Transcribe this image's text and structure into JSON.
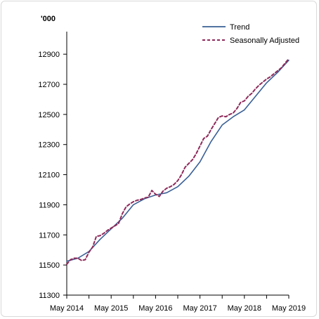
{
  "chart_data": {
    "type": "line",
    "title": "",
    "unit_label": "'000",
    "xlabel": "",
    "ylabel": "",
    "x_tick_labels": [
      "May 2014",
      "May 2015",
      "May 2016",
      "May 2017",
      "May 2018",
      "May 2019"
    ],
    "y_ticks": [
      11300,
      11500,
      11700,
      11900,
      12100,
      12300,
      12500,
      12700,
      12900
    ],
    "y_tick_labels": [
      "11300",
      "11500",
      "11700",
      "11900",
      "12100",
      "12300",
      "12500",
      "12700",
      "12900"
    ],
    "ylim": [
      11300,
      13050
    ],
    "x_range_months": [
      0,
      60
    ],
    "grid": false,
    "legend_position": "top-right",
    "series": [
      {
        "name": "Trend",
        "color": "#3a5f95",
        "style": "solid",
        "x_months": [
          0,
          3,
          6,
          9,
          12,
          15,
          18,
          21,
          24,
          27,
          30,
          33,
          36,
          39,
          42,
          45,
          48,
          51,
          54,
          57,
          60
        ],
        "values": [
          11525,
          11545,
          11590,
          11670,
          11740,
          11810,
          11900,
          11940,
          11965,
          11980,
          12020,
          12090,
          12185,
          12320,
          12430,
          12485,
          12530,
          12620,
          12710,
          12780,
          12860
        ]
      },
      {
        "name": "Seasonally Adjusted",
        "color": "#8e2a5a",
        "style": "dashed",
        "x_months": [
          0,
          1,
          2,
          3,
          4,
          5,
          6,
          7,
          8,
          9,
          10,
          11,
          12,
          13,
          14,
          15,
          16,
          17,
          18,
          19,
          20,
          21,
          22,
          23,
          24,
          25,
          26,
          27,
          28,
          29,
          30,
          31,
          32,
          33,
          34,
          35,
          36,
          37,
          38,
          39,
          40,
          41,
          42,
          43,
          44,
          45,
          46,
          47,
          48,
          49,
          50,
          51,
          52,
          53,
          54,
          55,
          56,
          57,
          58,
          59,
          60
        ],
        "values": [
          11505,
          11535,
          11545,
          11545,
          11530,
          11535,
          11585,
          11620,
          11690,
          11695,
          11710,
          11730,
          11745,
          11760,
          11775,
          11840,
          11885,
          11905,
          11920,
          11930,
          11935,
          11945,
          11950,
          11995,
          11970,
          11955,
          11990,
          12010,
          12020,
          12035,
          12060,
          12100,
          12150,
          12175,
          12200,
          12240,
          12290,
          12340,
          12355,
          12400,
          12440,
          12480,
          12490,
          12485,
          12500,
          12510,
          12540,
          12580,
          12590,
          12620,
          12640,
          12670,
          12695,
          12715,
          12735,
          12750,
          12770,
          12790,
          12810,
          12840,
          12870
        ]
      }
    ]
  }
}
